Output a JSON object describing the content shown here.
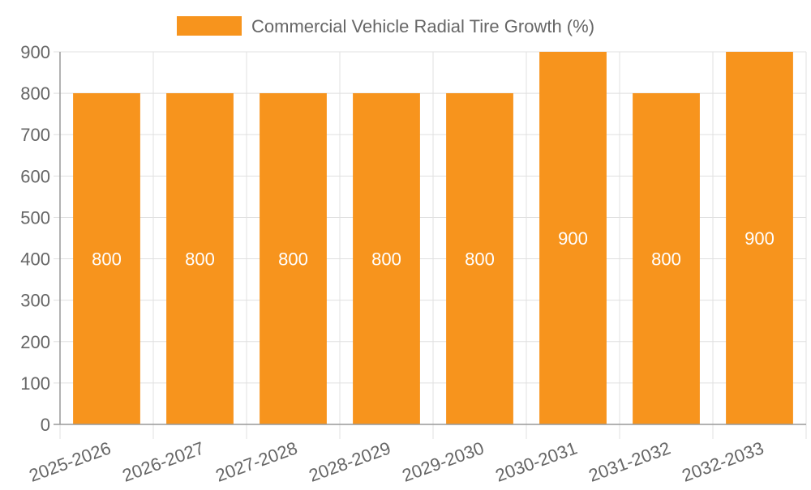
{
  "chart_data": {
    "type": "bar",
    "categories": [
      "2025-2026",
      "2026-2027",
      "2027-2028",
      "2028-2029",
      "2029-2030",
      "2030-2031",
      "2031-2032",
      "2032-2033"
    ],
    "series": [
      {
        "name": "Commercial Vehicle Radial Tire Growth (%)",
        "values": [
          800,
          800,
          800,
          800,
          800,
          900,
          800,
          900
        ],
        "color": "#f7941d"
      }
    ],
    "title": "",
    "xlabel": "",
    "ylabel": "",
    "ylim": [
      0,
      900
    ],
    "yticks": [
      0,
      100,
      200,
      300,
      400,
      500,
      600,
      700,
      800,
      900
    ],
    "grid": true,
    "legend_position": "top",
    "data_labels": [
      "800",
      "800",
      "800",
      "800",
      "800",
      "900",
      "800",
      "900"
    ]
  },
  "colors": {
    "bar": "#f7941d",
    "grid": "#e0e0e0",
    "axis": "#999999",
    "text": "#666666",
    "label": "#ffffff"
  }
}
